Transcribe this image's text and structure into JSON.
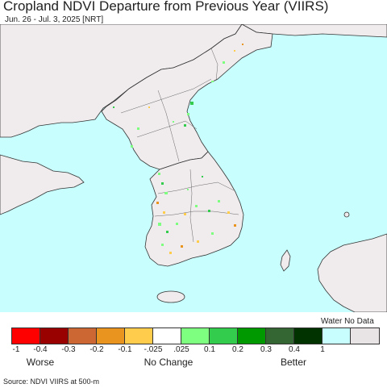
{
  "title": "Cropland NDVI Departure from Previous Year (VIIRS)",
  "subtitle": "Jun. 26 - Jul. 3, 2025 [NRT]",
  "colors": {
    "sea": "#c8fefe",
    "land": "#f0ecee",
    "border": "#333333"
  },
  "legend": {
    "water_no_data_label": "Water No Data",
    "swatches": [
      {
        "color": "#ff0000"
      },
      {
        "color": "#990000"
      },
      {
        "color": "#cc6633"
      },
      {
        "color": "#e8941e"
      },
      {
        "color": "#ffcc4c"
      },
      {
        "color": "#ffffff"
      },
      {
        "color": "#7fff7f"
      },
      {
        "color": "#33cc4c"
      },
      {
        "color": "#009900"
      },
      {
        "color": "#336633"
      },
      {
        "color": "#003300"
      },
      {
        "color": "#c8fefe"
      },
      {
        "color": "#e8e4e6"
      }
    ],
    "ticks": [
      "-1",
      "-0.4",
      "-0.3",
      "-0.2",
      "-0.1",
      "-.025",
      ".025",
      "0.1",
      "0.2",
      "0.3",
      "0.4",
      "1"
    ],
    "captions": {
      "worse": "Worse",
      "no_change": "No Change",
      "better": "Better"
    }
  },
  "source": "Source: NDVI VIIRS at 500-m"
}
